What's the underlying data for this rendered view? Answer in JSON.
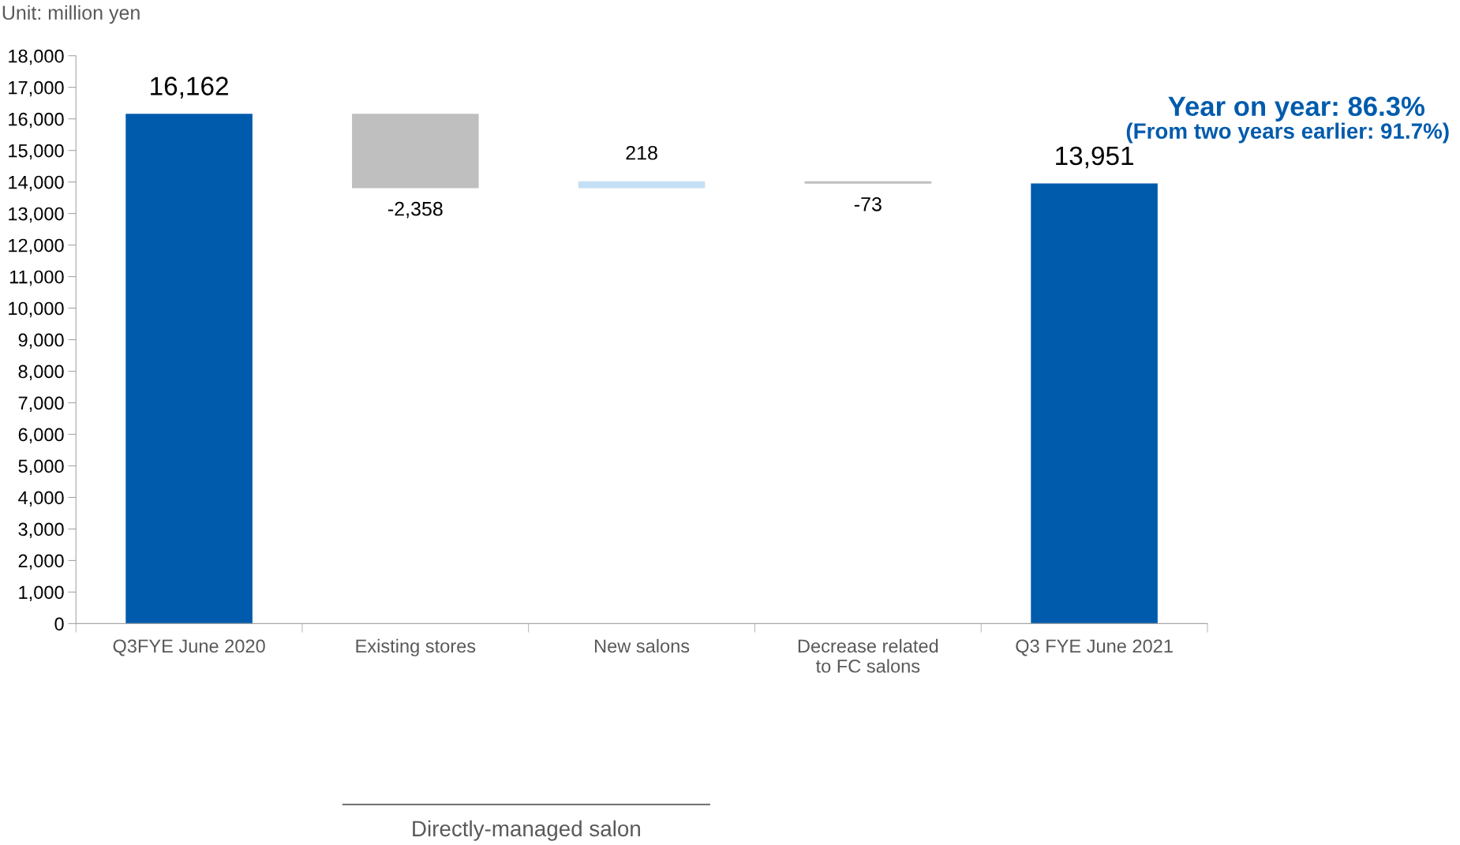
{
  "chart_data": {
    "type": "bar",
    "categories": [
      "Q3FYE June 2020",
      "Existing stores",
      "New salons",
      "Decrease related\nto FC salons",
      "Q3 FYE June 2021"
    ],
    "values": [
      16162,
      -2358,
      218,
      -73,
      13951
    ],
    "base": [
      0,
      16162,
      13804,
      14022,
      0
    ],
    "colors": [
      "#005bac",
      "#bfbfbf",
      "#c5e0f4",
      "#bfbfbf",
      "#005bac"
    ],
    "value_labels": [
      "16,162",
      "-2,358",
      "218",
      "-73",
      "13,951"
    ],
    "ylim": [
      0,
      18000
    ],
    "yticks": [
      0,
      {
        "value": 1000,
        "label": "1,000"
      },
      {
        "value": 2000,
        "label": "2,000"
      },
      {
        "value": 3000,
        "label": "3,000"
      },
      {
        "value": 4000,
        "label": "4,000"
      },
      {
        "value": 5000,
        "label": "5,000"
      },
      {
        "value": 6000,
        "label": "6,000"
      },
      {
        "value": 7000,
        "label": "7,000"
      },
      {
        "value": 8000,
        "label": "8,000"
      },
      {
        "value": 9000,
        "label": "9,000"
      },
      {
        "value": 10000,
        "label": "10,000"
      },
      {
        "value": 11000,
        "label": "11,000"
      },
      {
        "value": 12000,
        "label": "12,000"
      },
      {
        "value": 13000,
        "label": "13,000"
      },
      {
        "value": 14000,
        "label": "14,000"
      },
      {
        "value": 15000,
        "label": "15,000"
      },
      {
        "value": 16000,
        "label": "16,000"
      },
      {
        "value": 17000,
        "label": "17,000"
      },
      {
        "value": 18000,
        "label": "18,000"
      }
    ],
    "grid": false,
    "annotations": [
      "Unit: million yen",
      "Year on year: 86.3%",
      "(From two years earlier: 91.7%)",
      "Directly-managed salon"
    ]
  }
}
